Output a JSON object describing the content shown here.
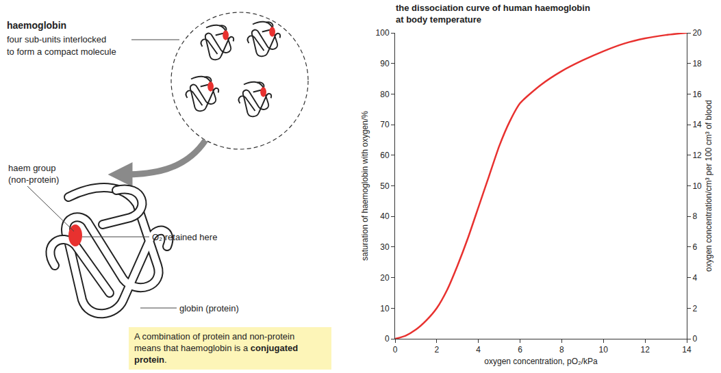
{
  "diagram": {
    "title": "haemoglobin",
    "subtitle": [
      "four sub-units interlocked",
      "to form a compact molecule"
    ],
    "haem_label": [
      "haem group",
      "(non-protein)"
    ],
    "oxygen_label": "O₂ retained here",
    "globin_label": "globin (protein)",
    "note": {
      "lines": [
        "A combination of protein and non-protein",
        "means that haemoglobin is a"
      ],
      "bold": "conjugated protein",
      "end": "."
    }
  },
  "chart_data": {
    "type": "line",
    "title": "the dissociation curve of human haemoglobin at body temperature",
    "x_label": "oxygen concentration, pO₂/kPa",
    "y_label": "saturation of haemoglobin with oxygen/%",
    "y2_label": "oxygen concentration/cm³ per 100 cm³ of blood",
    "x": [
      0,
      0.5,
      1,
      1.5,
      2,
      2.5,
      3,
      3.5,
      4,
      4.5,
      5,
      5.5,
      6,
      7,
      8,
      9,
      10,
      11,
      12,
      13,
      14
    ],
    "values": [
      0,
      1,
      3,
      6,
      10,
      16,
      24,
      33,
      43,
      53,
      63,
      71,
      77,
      83,
      87.5,
      91,
      94,
      96.5,
      98.2,
      99.3,
      100
    ],
    "color": "#e8312f",
    "xlim": [
      0,
      14
    ],
    "xticks": [
      0,
      2,
      4,
      6,
      8,
      10,
      12,
      14
    ],
    "ylim": [
      0,
      100
    ],
    "yticks": [
      0,
      10,
      20,
      30,
      40,
      50,
      60,
      70,
      80,
      90,
      100
    ],
    "y2lim": [
      0,
      20
    ],
    "y2ticks": [
      0,
      2,
      4,
      6,
      8,
      10,
      12,
      14,
      16,
      18,
      20
    ],
    "grid": false
  }
}
